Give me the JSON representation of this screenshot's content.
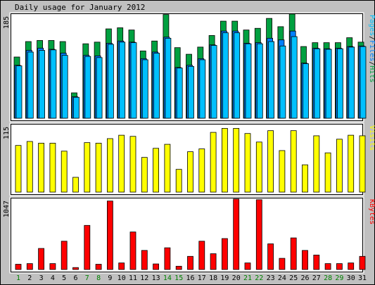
{
  "title": "Daily usage for January 2012",
  "colors": {
    "background": "#c0c0c0",
    "panel": "#ffffff",
    "hits": "#00a040",
    "files": "#0080ff",
    "pages": "#00c0ff",
    "visits": "#ffff00",
    "kbytes": "#ff0000",
    "weekday_label": "#000000",
    "weekend_label": "#008000"
  },
  "chart_data": [
    {
      "type": "bar",
      "name": "pages-files-hits",
      "ymax_label": "185",
      "ylim": [
        0,
        185
      ],
      "ylabel_parts": [
        {
          "text": "Pages",
          "color": "#00c0ff"
        },
        {
          "text": "/",
          "color": "#000000"
        },
        {
          "text": "Files",
          "color": "#0080ff"
        },
        {
          "text": "/",
          "color": "#000000"
        },
        {
          "text": "Hits",
          "color": "#00a040"
        }
      ],
      "categories": [
        "1",
        "2",
        "3",
        "4",
        "5",
        "6",
        "7",
        "8",
        "9",
        "10",
        "11",
        "12",
        "13",
        "14",
        "15",
        "16",
        "17",
        "18",
        "19",
        "20",
        "21",
        "22",
        "23",
        "24",
        "25",
        "26",
        "27",
        "28",
        "29",
        "30",
        "31"
      ],
      "series": [
        {
          "name": "Hits",
          "values": [
            111,
            139,
            141,
            141,
            139,
            46,
            135,
            138,
            162,
            164,
            160,
            122,
            140,
            188,
            128,
            116,
            129,
            150,
            176,
            176,
            160,
            163,
            181,
            166,
            189,
            130,
            137,
            137,
            137,
            146,
            138
          ]
        },
        {
          "name": "Files",
          "values": [
            96,
            123,
            127,
            125,
            118,
            39,
            114,
            113,
            136,
            140,
            138,
            108,
            120,
            147,
            92,
            96,
            108,
            133,
            158,
            158,
            136,
            137,
            145,
            142,
            158,
            100,
            127,
            126,
            127,
            130,
            131
          ]
        },
        {
          "name": "Pages",
          "values": [
            95,
            120,
            123,
            124,
            114,
            38,
            112,
            110,
            134,
            138,
            137,
            106,
            118,
            145,
            91,
            94,
            106,
            132,
            155,
            155,
            135,
            135,
            139,
            131,
            148,
            99,
            126,
            125,
            126,
            129,
            130
          ]
        }
      ]
    },
    {
      "type": "bar",
      "name": "visits",
      "ymax_label": "115",
      "ylim": [
        0,
        115
      ],
      "ylabel_parts": [
        {
          "text": "Visits",
          "color": "#ffff00"
        }
      ],
      "categories": [
        "1",
        "2",
        "3",
        "4",
        "5",
        "6",
        "7",
        "8",
        "9",
        "10",
        "11",
        "12",
        "13",
        "14",
        "15",
        "16",
        "17",
        "18",
        "19",
        "20",
        "21",
        "22",
        "23",
        "24",
        "25",
        "26",
        "27",
        "28",
        "29",
        "30",
        "31"
      ],
      "series": [
        {
          "name": "Visits",
          "values": [
            82,
            89,
            86,
            86,
            72,
            26,
            87,
            86,
            94,
            100,
            98,
            61,
            77,
            84,
            40,
            71,
            76,
            105,
            112,
            112,
            103,
            88,
            108,
            73,
            108,
            48,
            99,
            69,
            93,
            100,
            99
          ]
        }
      ]
    },
    {
      "type": "bar",
      "name": "kbytes",
      "ymax_label": "1047",
      "ylim": [
        0,
        1047
      ],
      "ylabel_parts": [
        {
          "text": "KBytes",
          "color": "#ff0000"
        }
      ],
      "categories": [
        "1",
        "2",
        "3",
        "4",
        "5",
        "6",
        "7",
        "8",
        "9",
        "10",
        "11",
        "12",
        "13",
        "14",
        "15",
        "16",
        "17",
        "18",
        "19",
        "20",
        "21",
        "22",
        "23",
        "24",
        "25",
        "26",
        "27",
        "28",
        "29",
        "30",
        "31"
      ],
      "series": [
        {
          "name": "KBytes",
          "values": [
            80,
            90,
            320,
            90,
            430,
            30,
            670,
            80,
            1040,
            100,
            570,
            290,
            85,
            330,
            50,
            200,
            430,
            240,
            470,
            1070,
            100,
            1060,
            390,
            170,
            480,
            290,
            220,
            90,
            90,
            100,
            200
          ]
        }
      ]
    }
  ],
  "x_labels": [
    {
      "text": "1",
      "weekend": true
    },
    {
      "text": "2",
      "weekend": false
    },
    {
      "text": "3",
      "weekend": false
    },
    {
      "text": "4",
      "weekend": false
    },
    {
      "text": "5",
      "weekend": false
    },
    {
      "text": "6",
      "weekend": false
    },
    {
      "text": "7",
      "weekend": true
    },
    {
      "text": "8",
      "weekend": true
    },
    {
      "text": "9",
      "weekend": false
    },
    {
      "text": "10",
      "weekend": false
    },
    {
      "text": "11",
      "weekend": false
    },
    {
      "text": "12",
      "weekend": false
    },
    {
      "text": "13",
      "weekend": false
    },
    {
      "text": "14",
      "weekend": true
    },
    {
      "text": "15",
      "weekend": true
    },
    {
      "text": "16",
      "weekend": false
    },
    {
      "text": "17",
      "weekend": false
    },
    {
      "text": "18",
      "weekend": false
    },
    {
      "text": "19",
      "weekend": false
    },
    {
      "text": "20",
      "weekend": false
    },
    {
      "text": "21",
      "weekend": true
    },
    {
      "text": "22",
      "weekend": true
    },
    {
      "text": "23",
      "weekend": false
    },
    {
      "text": "24",
      "weekend": false
    },
    {
      "text": "25",
      "weekend": false
    },
    {
      "text": "26",
      "weekend": false
    },
    {
      "text": "27",
      "weekend": false
    },
    {
      "text": "28",
      "weekend": true
    },
    {
      "text": "29",
      "weekend": true
    },
    {
      "text": "30",
      "weekend": false
    },
    {
      "text": "31",
      "weekend": false
    }
  ]
}
